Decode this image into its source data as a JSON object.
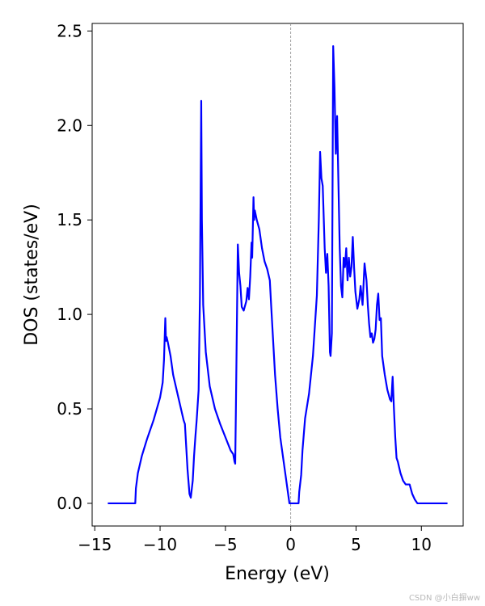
{
  "chart_data": {
    "type": "line",
    "title": "",
    "xlabel": "Energy (eV)",
    "ylabel": "DOS (states/eV)",
    "xlim": [
      -15.2,
      13.2
    ],
    "ylim": [
      -0.12,
      2.54
    ],
    "xticks": [
      -15,
      -10,
      -5,
      0,
      5,
      10
    ],
    "xtick_labels": [
      "−15",
      "−10",
      "−5",
      "0",
      "5",
      "10"
    ],
    "yticks": [
      0.0,
      0.5,
      1.0,
      1.5,
      2.0,
      2.5
    ],
    "ytick_labels": [
      "0.0",
      "0.5",
      "1.0",
      "1.5",
      "2.0",
      "2.5"
    ],
    "grid": false,
    "legend": "none",
    "reference_line": {
      "x": 0,
      "style": "dashed",
      "color": "#888888"
    },
    "series": [
      {
        "color": "#0000ff",
        "points": [
          [
            -14.0,
            0.0
          ],
          [
            -11.9,
            0.0
          ],
          [
            -11.85,
            0.08
          ],
          [
            -11.7,
            0.16
          ],
          [
            -11.4,
            0.25
          ],
          [
            -11.0,
            0.34
          ],
          [
            -10.5,
            0.44
          ],
          [
            -10.0,
            0.56
          ],
          [
            -9.8,
            0.64
          ],
          [
            -9.7,
            0.76
          ],
          [
            -9.6,
            0.98
          ],
          [
            -9.55,
            0.86
          ],
          [
            -9.5,
            0.88
          ],
          [
            -9.4,
            0.85
          ],
          [
            -9.2,
            0.78
          ],
          [
            -9.0,
            0.68
          ],
          [
            -8.6,
            0.56
          ],
          [
            -8.2,
            0.44
          ],
          [
            -8.1,
            0.42
          ],
          [
            -7.9,
            0.18
          ],
          [
            -7.75,
            0.05
          ],
          [
            -7.65,
            0.03
          ],
          [
            -7.5,
            0.12
          ],
          [
            -7.4,
            0.25
          ],
          [
            -7.3,
            0.35
          ],
          [
            -7.2,
            0.44
          ],
          [
            -7.05,
            0.6
          ],
          [
            -6.95,
            1.1
          ],
          [
            -6.85,
            2.13
          ],
          [
            -6.8,
            1.5
          ],
          [
            -6.7,
            1.05
          ],
          [
            -6.5,
            0.8
          ],
          [
            -6.2,
            0.62
          ],
          [
            -5.8,
            0.5
          ],
          [
            -5.4,
            0.42
          ],
          [
            -5.0,
            0.35
          ],
          [
            -4.6,
            0.28
          ],
          [
            -4.4,
            0.26
          ],
          [
            -4.3,
            0.22
          ],
          [
            -4.25,
            0.21
          ],
          [
            -4.2,
            0.48
          ],
          [
            -4.05,
            1.37
          ],
          [
            -3.95,
            1.22
          ],
          [
            -3.85,
            1.15
          ],
          [
            -3.75,
            1.04
          ],
          [
            -3.6,
            1.02
          ],
          [
            -3.4,
            1.07
          ],
          [
            -3.3,
            1.14
          ],
          [
            -3.2,
            1.08
          ],
          [
            -3.1,
            1.2
          ],
          [
            -3.0,
            1.38
          ],
          [
            -2.95,
            1.3
          ],
          [
            -2.85,
            1.62
          ],
          [
            -2.8,
            1.5
          ],
          [
            -2.75,
            1.55
          ],
          [
            -2.6,
            1.5
          ],
          [
            -2.4,
            1.45
          ],
          [
            -2.2,
            1.35
          ],
          [
            -2.0,
            1.28
          ],
          [
            -1.8,
            1.24
          ],
          [
            -1.6,
            1.18
          ],
          [
            -1.5,
            1.05
          ],
          [
            -1.2,
            0.68
          ],
          [
            -1.0,
            0.5
          ],
          [
            -0.8,
            0.35
          ],
          [
            -0.6,
            0.25
          ],
          [
            -0.4,
            0.15
          ],
          [
            -0.2,
            0.05
          ],
          [
            -0.1,
            0.0
          ],
          [
            0.6,
            0.0
          ],
          [
            0.65,
            0.06
          ],
          [
            0.8,
            0.15
          ],
          [
            0.9,
            0.28
          ],
          [
            1.1,
            0.45
          ],
          [
            1.4,
            0.58
          ],
          [
            1.7,
            0.78
          ],
          [
            2.0,
            1.1
          ],
          [
            2.15,
            1.5
          ],
          [
            2.25,
            1.86
          ],
          [
            2.35,
            1.72
          ],
          [
            2.45,
            1.68
          ],
          [
            2.6,
            1.35
          ],
          [
            2.7,
            1.22
          ],
          [
            2.8,
            1.32
          ],
          [
            2.9,
            1.15
          ],
          [
            3.0,
            0.8
          ],
          [
            3.05,
            0.78
          ],
          [
            3.15,
            0.9
          ],
          [
            3.25,
            2.42
          ],
          [
            3.35,
            2.2
          ],
          [
            3.45,
            1.85
          ],
          [
            3.55,
            2.05
          ],
          [
            3.65,
            1.7
          ],
          [
            3.75,
            1.35
          ],
          [
            3.85,
            1.15
          ],
          [
            3.95,
            1.09
          ],
          [
            4.05,
            1.3
          ],
          [
            4.15,
            1.25
          ],
          [
            4.25,
            1.35
          ],
          [
            4.35,
            1.18
          ],
          [
            4.45,
            1.3
          ],
          [
            4.55,
            1.2
          ],
          [
            4.65,
            1.25
          ],
          [
            4.75,
            1.41
          ],
          [
            4.85,
            1.25
          ],
          [
            4.95,
            1.12
          ],
          [
            5.1,
            1.03
          ],
          [
            5.25,
            1.08
          ],
          [
            5.35,
            1.15
          ],
          [
            5.5,
            1.05
          ],
          [
            5.65,
            1.27
          ],
          [
            5.8,
            1.18
          ],
          [
            5.9,
            1.05
          ],
          [
            6.0,
            0.95
          ],
          [
            6.1,
            0.88
          ],
          [
            6.2,
            0.9
          ],
          [
            6.3,
            0.85
          ],
          [
            6.4,
            0.87
          ],
          [
            6.5,
            0.92
          ],
          [
            6.6,
            1.05
          ],
          [
            6.7,
            1.11
          ],
          [
            6.8,
            0.97
          ],
          [
            6.9,
            0.98
          ],
          [
            7.0,
            0.78
          ],
          [
            7.2,
            0.68
          ],
          [
            7.4,
            0.6
          ],
          [
            7.6,
            0.55
          ],
          [
            7.7,
            0.54
          ],
          [
            7.8,
            0.67
          ],
          [
            7.9,
            0.5
          ],
          [
            8.0,
            0.35
          ],
          [
            8.1,
            0.24
          ],
          [
            8.2,
            0.22
          ],
          [
            8.4,
            0.16
          ],
          [
            8.6,
            0.12
          ],
          [
            8.8,
            0.1
          ],
          [
            9.1,
            0.1
          ],
          [
            9.3,
            0.05
          ],
          [
            9.5,
            0.02
          ],
          [
            9.7,
            0.0
          ],
          [
            12.0,
            0.0
          ]
        ]
      }
    ]
  },
  "watermark": "CSDN @小白摒ww"
}
